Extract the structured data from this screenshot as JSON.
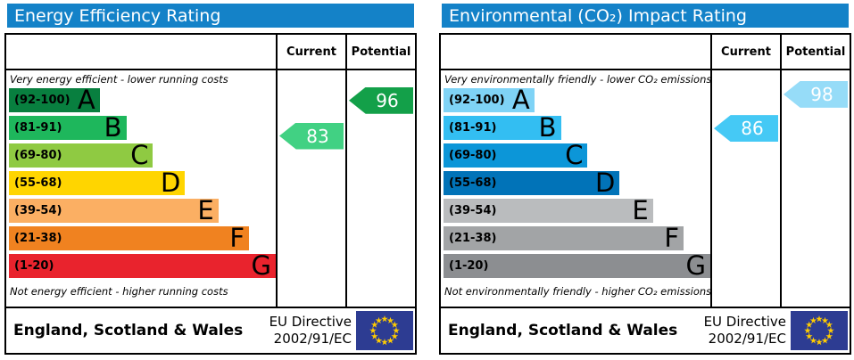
{
  "theme": {
    "header_bg": "#1482c8",
    "header_text": "#ffffff",
    "flag_bg": "#2d3c92",
    "flag_star": "#ffcc00",
    "border": "#000000"
  },
  "panels": [
    {
      "title": "Energy Efficiency Rating",
      "columns": {
        "current": "Current",
        "potential": "Potential"
      },
      "top_note": "Very energy efficient - lower running costs",
      "bottom_note": "Not energy efficient - higher running costs",
      "bands": [
        {
          "label": "(92-100)",
          "letter": "A",
          "min": 92,
          "max": 100,
          "color": "#087f3f",
          "width_pct": 34
        },
        {
          "label": "(81-91)",
          "letter": "B",
          "min": 81,
          "max": 91,
          "color": "#1eb75c",
          "width_pct": 44
        },
        {
          "label": "(69-80)",
          "letter": "C",
          "min": 69,
          "max": 80,
          "color": "#8fca42",
          "width_pct": 54
        },
        {
          "label": "(55-68)",
          "letter": "D",
          "min": 55,
          "max": 68,
          "color": "#ffd500",
          "width_pct": 66
        },
        {
          "label": "(39-54)",
          "letter": "E",
          "min": 39,
          "max": 54,
          "color": "#fbaf63",
          "width_pct": 78.5
        },
        {
          "label": "(21-38)",
          "letter": "F",
          "min": 21,
          "max": 38,
          "color": "#f08220",
          "width_pct": 90
        },
        {
          "label": "(1-20)",
          "letter": "G",
          "min": 1,
          "max": 20,
          "color": "#e9232d",
          "width_pct": 100
        }
      ],
      "current": {
        "value": 83,
        "color": "#41d183"
      },
      "potential": {
        "value": 96,
        "color": "#13a049"
      },
      "footer": {
        "region": "England, Scotland & Wales",
        "directive_line1": "EU Directive",
        "directive_line2": "2002/91/EC"
      }
    },
    {
      "title": "Environmental (CO₂) Impact Rating",
      "columns": {
        "current": "Current",
        "potential": "Potential"
      },
      "top_note": "Very environmentally friendly - lower CO₂ emissions",
      "bottom_note": "Not environmentally friendly - higher CO₂ emissions",
      "bands": [
        {
          "label": "(92-100)",
          "letter": "A",
          "min": 92,
          "max": 100,
          "color": "#7fd3f6",
          "width_pct": 34
        },
        {
          "label": "(81-91)",
          "letter": "B",
          "min": 81,
          "max": 91,
          "color": "#33bef2",
          "width_pct": 44
        },
        {
          "label": "(69-80)",
          "letter": "C",
          "min": 69,
          "max": 80,
          "color": "#0c96d8",
          "width_pct": 54
        },
        {
          "label": "(55-68)",
          "letter": "D",
          "min": 55,
          "max": 68,
          "color": "#0173b8",
          "width_pct": 66
        },
        {
          "label": "(39-54)",
          "letter": "E",
          "min": 39,
          "max": 54,
          "color": "#babcbe",
          "width_pct": 78.5
        },
        {
          "label": "(21-38)",
          "letter": "F",
          "min": 21,
          "max": 38,
          "color": "#a2a4a6",
          "width_pct": 90
        },
        {
          "label": "(1-20)",
          "letter": "G",
          "min": 1,
          "max": 20,
          "color": "#8c8e91",
          "width_pct": 100
        }
      ],
      "current": {
        "value": 86,
        "color": "#45c9f5"
      },
      "potential": {
        "value": 98,
        "color": "#96dcf8"
      },
      "footer": {
        "region": "England, Scotland & Wales",
        "directive_line1": "EU Directive",
        "directive_line2": "2002/91/EC"
      }
    }
  ],
  "chart_data": [
    {
      "type": "bar",
      "title": "Energy Efficiency Rating",
      "categories": [
        "A (92-100)",
        "B (81-91)",
        "C (69-80)",
        "D (55-68)",
        "E (39-54)",
        "F (21-38)",
        "G (1-20)"
      ],
      "bar_width_pct": [
        34,
        44,
        54,
        66,
        78.5,
        90,
        100
      ],
      "band_colors": [
        "#087f3f",
        "#1eb75c",
        "#8fca42",
        "#ffd500",
        "#fbaf63",
        "#f08220",
        "#e9232d"
      ],
      "current": 83,
      "current_band": "B",
      "potential": 96,
      "potential_band": "A",
      "top_note": "Very energy efficient - lower running costs",
      "bottom_note": "Not energy efficient - higher running costs",
      "footer": "England, Scotland & Wales",
      "directive": "EU Directive 2002/91/EC"
    },
    {
      "type": "bar",
      "title": "Environmental (CO₂) Impact Rating",
      "categories": [
        "A (92-100)",
        "B (81-91)",
        "C (69-80)",
        "D (55-68)",
        "E (39-54)",
        "F (21-38)",
        "G (1-20)"
      ],
      "bar_width_pct": [
        34,
        44,
        54,
        66,
        78.5,
        90,
        100
      ],
      "band_colors": [
        "#7fd3f6",
        "#33bef2",
        "#0c96d8",
        "#0173b8",
        "#babcbe",
        "#a2a4a6",
        "#8c8e91"
      ],
      "current": 86,
      "current_band": "B",
      "potential": 98,
      "potential_band": "A",
      "top_note": "Very environmentally friendly - lower CO₂ emissions",
      "bottom_note": "Not environmentally friendly - higher CO₂ emissions",
      "footer": "England, Scotland & Wales",
      "directive": "EU Directive 2002/91/EC"
    }
  ]
}
